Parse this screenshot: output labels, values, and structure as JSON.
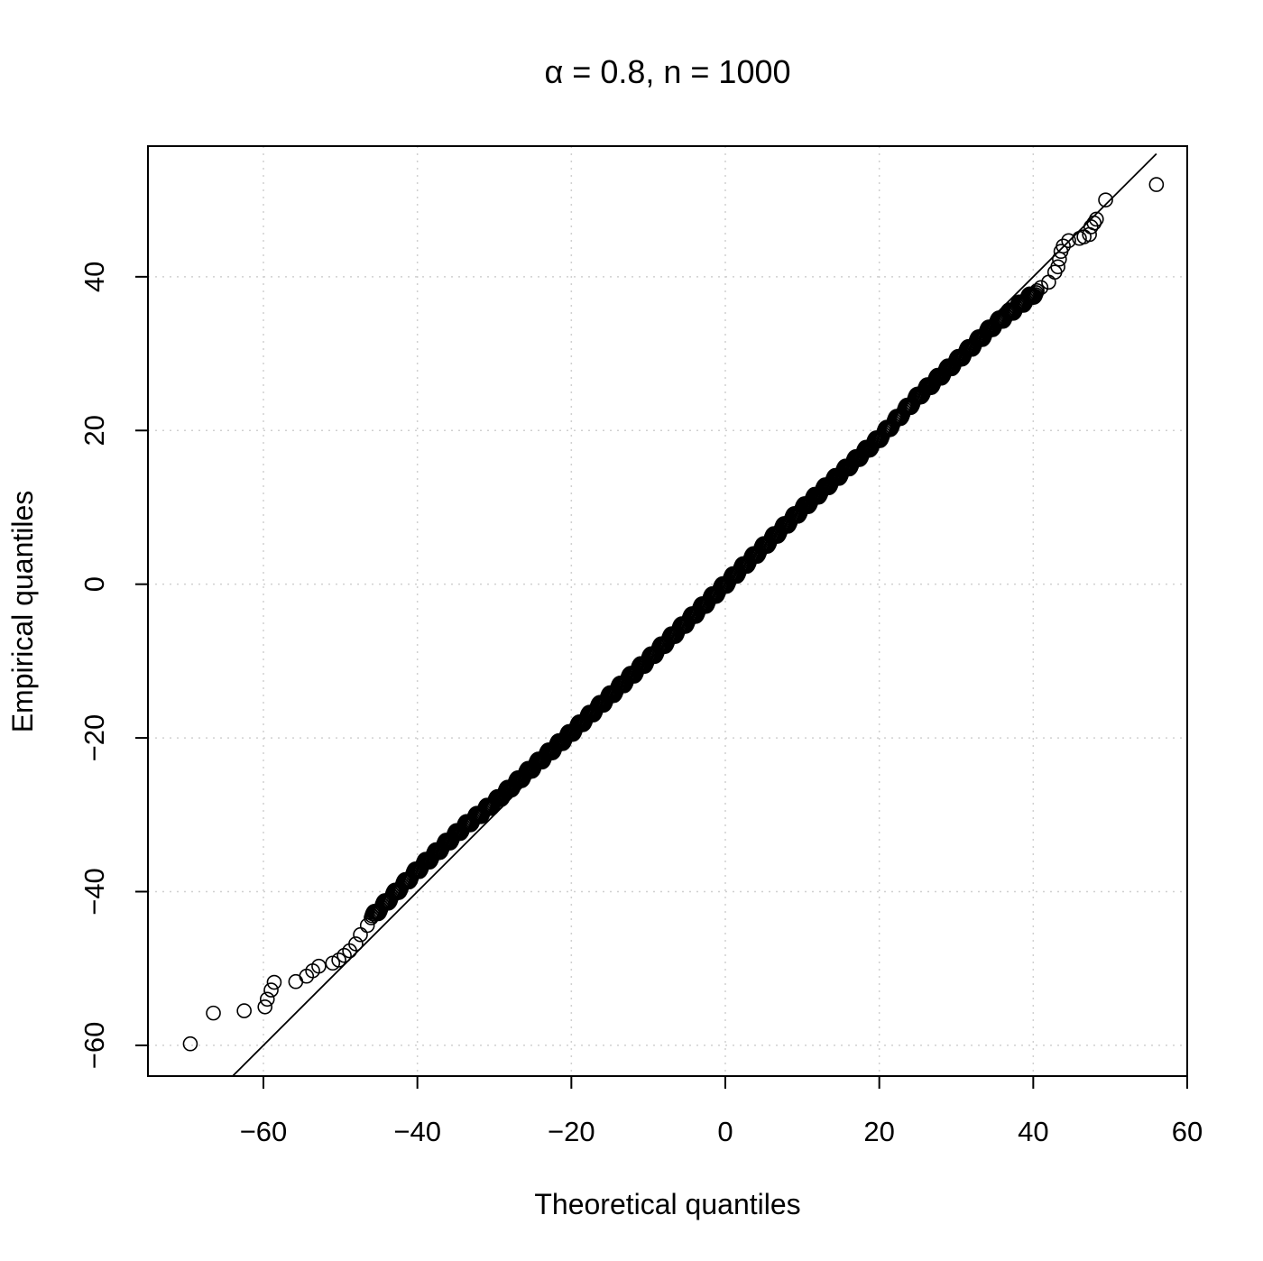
{
  "chart_data": {
    "type": "scatter",
    "title": "α = 0.8, n = 1000",
    "xlabel": "Theoretical quantiles",
    "ylabel": "Empirical quantiles",
    "xlim": [
      -75,
      60
    ],
    "ylim": [
      -64,
      57
    ],
    "x_ticks": [
      -60,
      -40,
      -20,
      0,
      20,
      40,
      60
    ],
    "y_ticks": [
      -60,
      -40,
      -20,
      0,
      20,
      40
    ],
    "x_tick_labels": [
      "−60",
      "−40",
      "−20",
      "0",
      "20",
      "40",
      "60"
    ],
    "y_tick_labels": [
      "−60",
      "−40",
      "−20",
      "0",
      "20",
      "40"
    ],
    "grid": true,
    "reference_line": {
      "points": [
        [
          -64,
          -64
        ],
        [
          56,
          56
        ]
      ]
    },
    "outlier_points": [
      [
        -69.5,
        -59.8
      ],
      [
        -66.5,
        -55.8
      ],
      [
        -62.5,
        -55.5
      ],
      [
        -59.8,
        -55.0
      ],
      [
        -59.5,
        -54.0
      ],
      [
        -59.0,
        -52.8
      ],
      [
        -58.6,
        -51.8
      ],
      [
        -55.8,
        -51.7
      ],
      [
        -54.4,
        -51.0
      ],
      [
        -53.6,
        -50.3
      ],
      [
        -52.8,
        -49.7
      ],
      [
        -51.0,
        -49.3
      ],
      [
        -50.2,
        -48.9
      ],
      [
        -49.5,
        -48.3
      ],
      [
        -48.8,
        -47.7
      ],
      [
        -48.0,
        -46.8
      ],
      [
        -47.4,
        -45.6
      ],
      [
        -46.5,
        -44.4
      ],
      [
        41.0,
        38.6
      ],
      [
        42.0,
        39.3
      ],
      [
        42.8,
        40.6
      ],
      [
        43.2,
        41.3
      ],
      [
        43.4,
        42.3
      ],
      [
        43.6,
        43.3
      ],
      [
        43.9,
        44.0
      ],
      [
        44.6,
        44.7
      ],
      [
        46.0,
        45.0
      ],
      [
        46.6,
        45.2
      ],
      [
        47.3,
        45.5
      ],
      [
        47.5,
        46.5
      ],
      [
        47.9,
        47.0
      ],
      [
        48.2,
        47.5
      ],
      [
        49.4,
        50.0
      ],
      [
        56.0,
        52.0
      ]
    ],
    "body": {
      "n": 966,
      "q_range": [
        -46,
        40.5
      ],
      "deviation_knots": [
        [
          -46,
          2.6
        ],
        [
          -40,
          2.8
        ],
        [
          -34,
          2.4
        ],
        [
          -30,
          1.6
        ],
        [
          -25,
          1.2
        ],
        [
          -20,
          0.7
        ],
        [
          -10,
          0.2
        ],
        [
          0,
          0.0
        ],
        [
          10,
          -0.2
        ],
        [
          20,
          -1.0
        ],
        [
          25,
          -0.6
        ],
        [
          30,
          -1.0
        ],
        [
          35,
          -1.2
        ],
        [
          40.5,
          -2.4
        ]
      ]
    }
  }
}
